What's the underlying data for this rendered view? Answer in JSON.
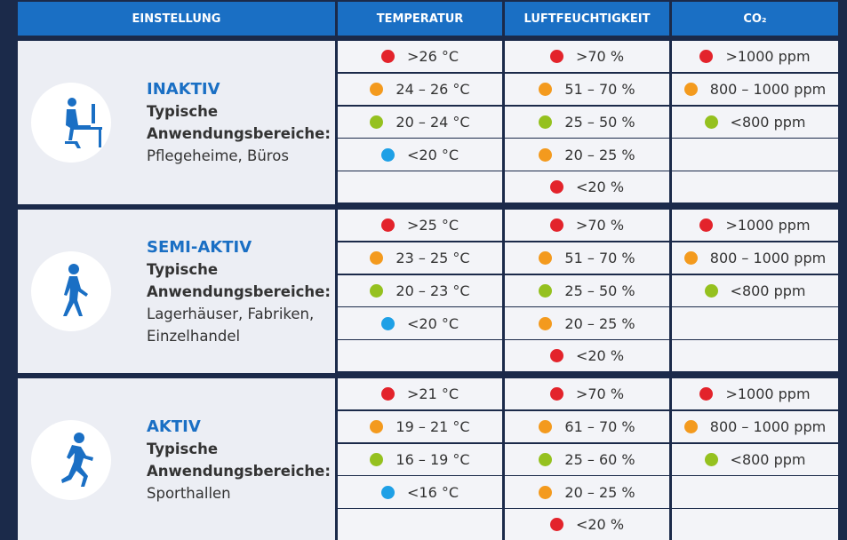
{
  "header": [
    "EINSTELLUNG",
    "TEMPERATUR",
    "LUFTFEUCHTIGKEIT",
    "CO₂"
  ],
  "sections": [
    {
      "title": "INAKTIV",
      "subtitle": "Typische Anwendungsbereiche:",
      "areas": "Pflegeheime, Büros",
      "temperature": [
        {
          "text": ">26 °C",
          "color": "#e3232b"
        },
        {
          "text": "24 – 26 °C",
          "color": "#f39a1e"
        },
        {
          "text": "20 – 24 °C",
          "color": "#95c11f"
        },
        {
          "text": "<20 °C",
          "color": "#1ea0e6"
        }
      ],
      "humidity": [
        {
          "text": ">70 %",
          "color": "#e3232b"
        },
        {
          "text": "51 – 70 %",
          "color": "#f39a1e"
        },
        {
          "text": "25 – 50 %",
          "color": "#95c11f"
        },
        {
          "text": "20 – 25 %",
          "color": "#f39a1e"
        },
        {
          "text": "<20 %",
          "color": "#e3232b"
        }
      ],
      "co2": [
        {
          "text": ">1000 ppm",
          "color": "#e3232b"
        },
        {
          "text": "800 – 1000 ppm",
          "color": "#f39a1e"
        },
        {
          "text": "<800 ppm",
          "color": "#95c11f"
        }
      ]
    },
    {
      "title": "SEMI-AKTIV",
      "subtitle": "Typische Anwendungsbereiche:",
      "areas": "Lagerhäuser, Fabriken, Einzelhandel",
      "temperature": [
        {
          "text": ">25 °C",
          "color": "#e3232b"
        },
        {
          "text": "23 – 25 °C",
          "color": "#f39a1e"
        },
        {
          "text": "20 – 23 °C",
          "color": "#95c11f"
        },
        {
          "text": "<20 °C",
          "color": "#1ea0e6"
        }
      ],
      "humidity": [
        {
          "text": ">70 %",
          "color": "#e3232b"
        },
        {
          "text": "51 – 70 %",
          "color": "#f39a1e"
        },
        {
          "text": "25 – 50 %",
          "color": "#95c11f"
        },
        {
          "text": "20 – 25 %",
          "color": "#f39a1e"
        },
        {
          "text": "<20 %",
          "color": "#e3232b"
        }
      ],
      "co2": [
        {
          "text": ">1000 ppm",
          "color": "#e3232b"
        },
        {
          "text": "800 – 1000 ppm",
          "color": "#f39a1e"
        },
        {
          "text": "<800 ppm",
          "color": "#95c11f"
        }
      ]
    },
    {
      "title": "AKTIV",
      "subtitle": "Typische Anwendungsbereiche:",
      "areas": "Sporthallen",
      "temperature": [
        {
          "text": ">21 °C",
          "color": "#e3232b"
        },
        {
          "text": "19 – 21 °C",
          "color": "#f39a1e"
        },
        {
          "text": "16 – 19 °C",
          "color": "#95c11f"
        },
        {
          "text": "<16 °C",
          "color": "#1ea0e6"
        }
      ],
      "humidity": [
        {
          "text": ">70 %",
          "color": "#e3232b"
        },
        {
          "text": "61 – 70 %",
          "color": "#f39a1e"
        },
        {
          "text": "25 – 60 %",
          "color": "#95c11f"
        },
        {
          "text": "20 – 25 %",
          "color": "#f39a1e"
        },
        {
          "text": "<20 %",
          "color": "#e3232b"
        }
      ],
      "co2": [
        {
          "text": ">1000 ppm",
          "color": "#e3232b"
        },
        {
          "text": "800 – 1000 ppm",
          "color": "#f39a1e"
        },
        {
          "text": "<800 ppm",
          "color": "#95c11f"
        }
      ]
    }
  ]
}
